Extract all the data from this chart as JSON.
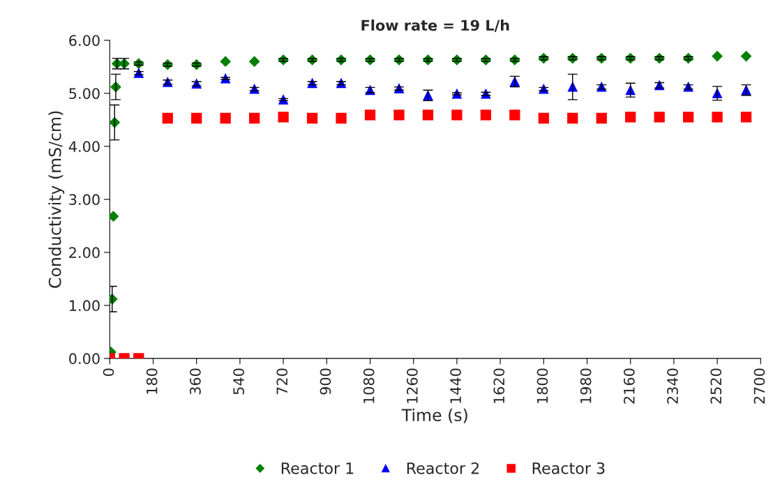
{
  "chart_data": {
    "type": "scatter",
    "title": "Flow rate = 19 L/h",
    "xlabel": "Time (s)",
    "ylabel": "Conductivity (mS/cm)",
    "xlim": [
      0,
      2700
    ],
    "xticks": [
      0,
      180,
      360,
      540,
      720,
      900,
      1080,
      1260,
      1440,
      1620,
      1800,
      1980,
      2160,
      2340,
      2520,
      2700
    ],
    "ylim": [
      0,
      6
    ],
    "yticks": [
      {
        "value": 0,
        "label": "0.00"
      },
      {
        "value": 1,
        "label": "1.00"
      },
      {
        "value": 2,
        "label": "2.00"
      },
      {
        "value": 3,
        "label": "3.00"
      },
      {
        "value": 4,
        "label": "4.00"
      },
      {
        "value": 5,
        "label": "5.00"
      },
      {
        "value": 6,
        "label": "6.00"
      }
    ],
    "grid": false,
    "legend": "bottom",
    "series": [
      {
        "name": "Reactor 1",
        "color": "#008000",
        "marker": "diamond",
        "x": [
          5,
          10,
          15,
          20,
          25,
          30,
          60,
          120,
          240,
          360,
          480,
          600,
          720,
          840,
          960,
          1080,
          1200,
          1320,
          1440,
          1560,
          1680,
          1800,
          1920,
          2040,
          2160,
          2280,
          2400,
          2520,
          2640
        ],
        "values": [
          0.12,
          1.12,
          2.68,
          4.45,
          5.12,
          5.56,
          5.56,
          5.56,
          5.54,
          5.54,
          5.6,
          5.6,
          5.63,
          5.63,
          5.63,
          5.63,
          5.63,
          5.63,
          5.63,
          5.63,
          5.63,
          5.66,
          5.66,
          5.66,
          5.66,
          5.66,
          5.66,
          5.7,
          5.7
        ],
        "errors": [
          null,
          0.24,
          null,
          0.33,
          0.24,
          0.1,
          0.1,
          0.03,
          0.03,
          0.03,
          null,
          null,
          0.03,
          0.03,
          0.03,
          0.03,
          0.03,
          0.03,
          0.03,
          0.03,
          0.03,
          0.03,
          0.03,
          0.03,
          0.03,
          0.03,
          0.03,
          null,
          null
        ]
      },
      {
        "name": "Reactor 2",
        "color": "#0000ff",
        "marker": "triangle",
        "x": [
          120,
          240,
          360,
          480,
          600,
          720,
          840,
          960,
          1080,
          1200,
          1320,
          1440,
          1560,
          1680,
          1800,
          1920,
          2040,
          2160,
          2280,
          2400,
          2520,
          2640
        ],
        "values": [
          5.38,
          5.21,
          5.18,
          5.28,
          5.08,
          4.88,
          5.19,
          5.19,
          5.06,
          5.09,
          4.96,
          4.99,
          4.99,
          5.22,
          5.08,
          5.12,
          5.12,
          5.06,
          5.15,
          5.12,
          5.0,
          5.06
        ],
        "errors": [
          0.03,
          0.04,
          0.04,
          0.02,
          0.03,
          0.02,
          0.03,
          0.03,
          0.05,
          0.03,
          0.1,
          0.02,
          0.03,
          0.1,
          0.03,
          0.24,
          0.04,
          0.13,
          0.05,
          0.04,
          0.13,
          0.1
        ]
      },
      {
        "name": "Reactor 3",
        "color": "#ff0000",
        "marker": "square",
        "x": [
          0,
          60,
          120,
          240,
          360,
          480,
          600,
          720,
          840,
          960,
          1080,
          1200,
          1320,
          1440,
          1560,
          1680,
          1800,
          1920,
          2040,
          2160,
          2280,
          2400,
          2520,
          2640
        ],
        "values": [
          0,
          0,
          0,
          4.53,
          4.53,
          4.53,
          4.53,
          4.55,
          4.53,
          4.53,
          4.59,
          4.59,
          4.59,
          4.59,
          4.59,
          4.59,
          4.53,
          4.53,
          4.53,
          4.55,
          4.55,
          4.55,
          4.55,
          4.55
        ]
      }
    ]
  }
}
